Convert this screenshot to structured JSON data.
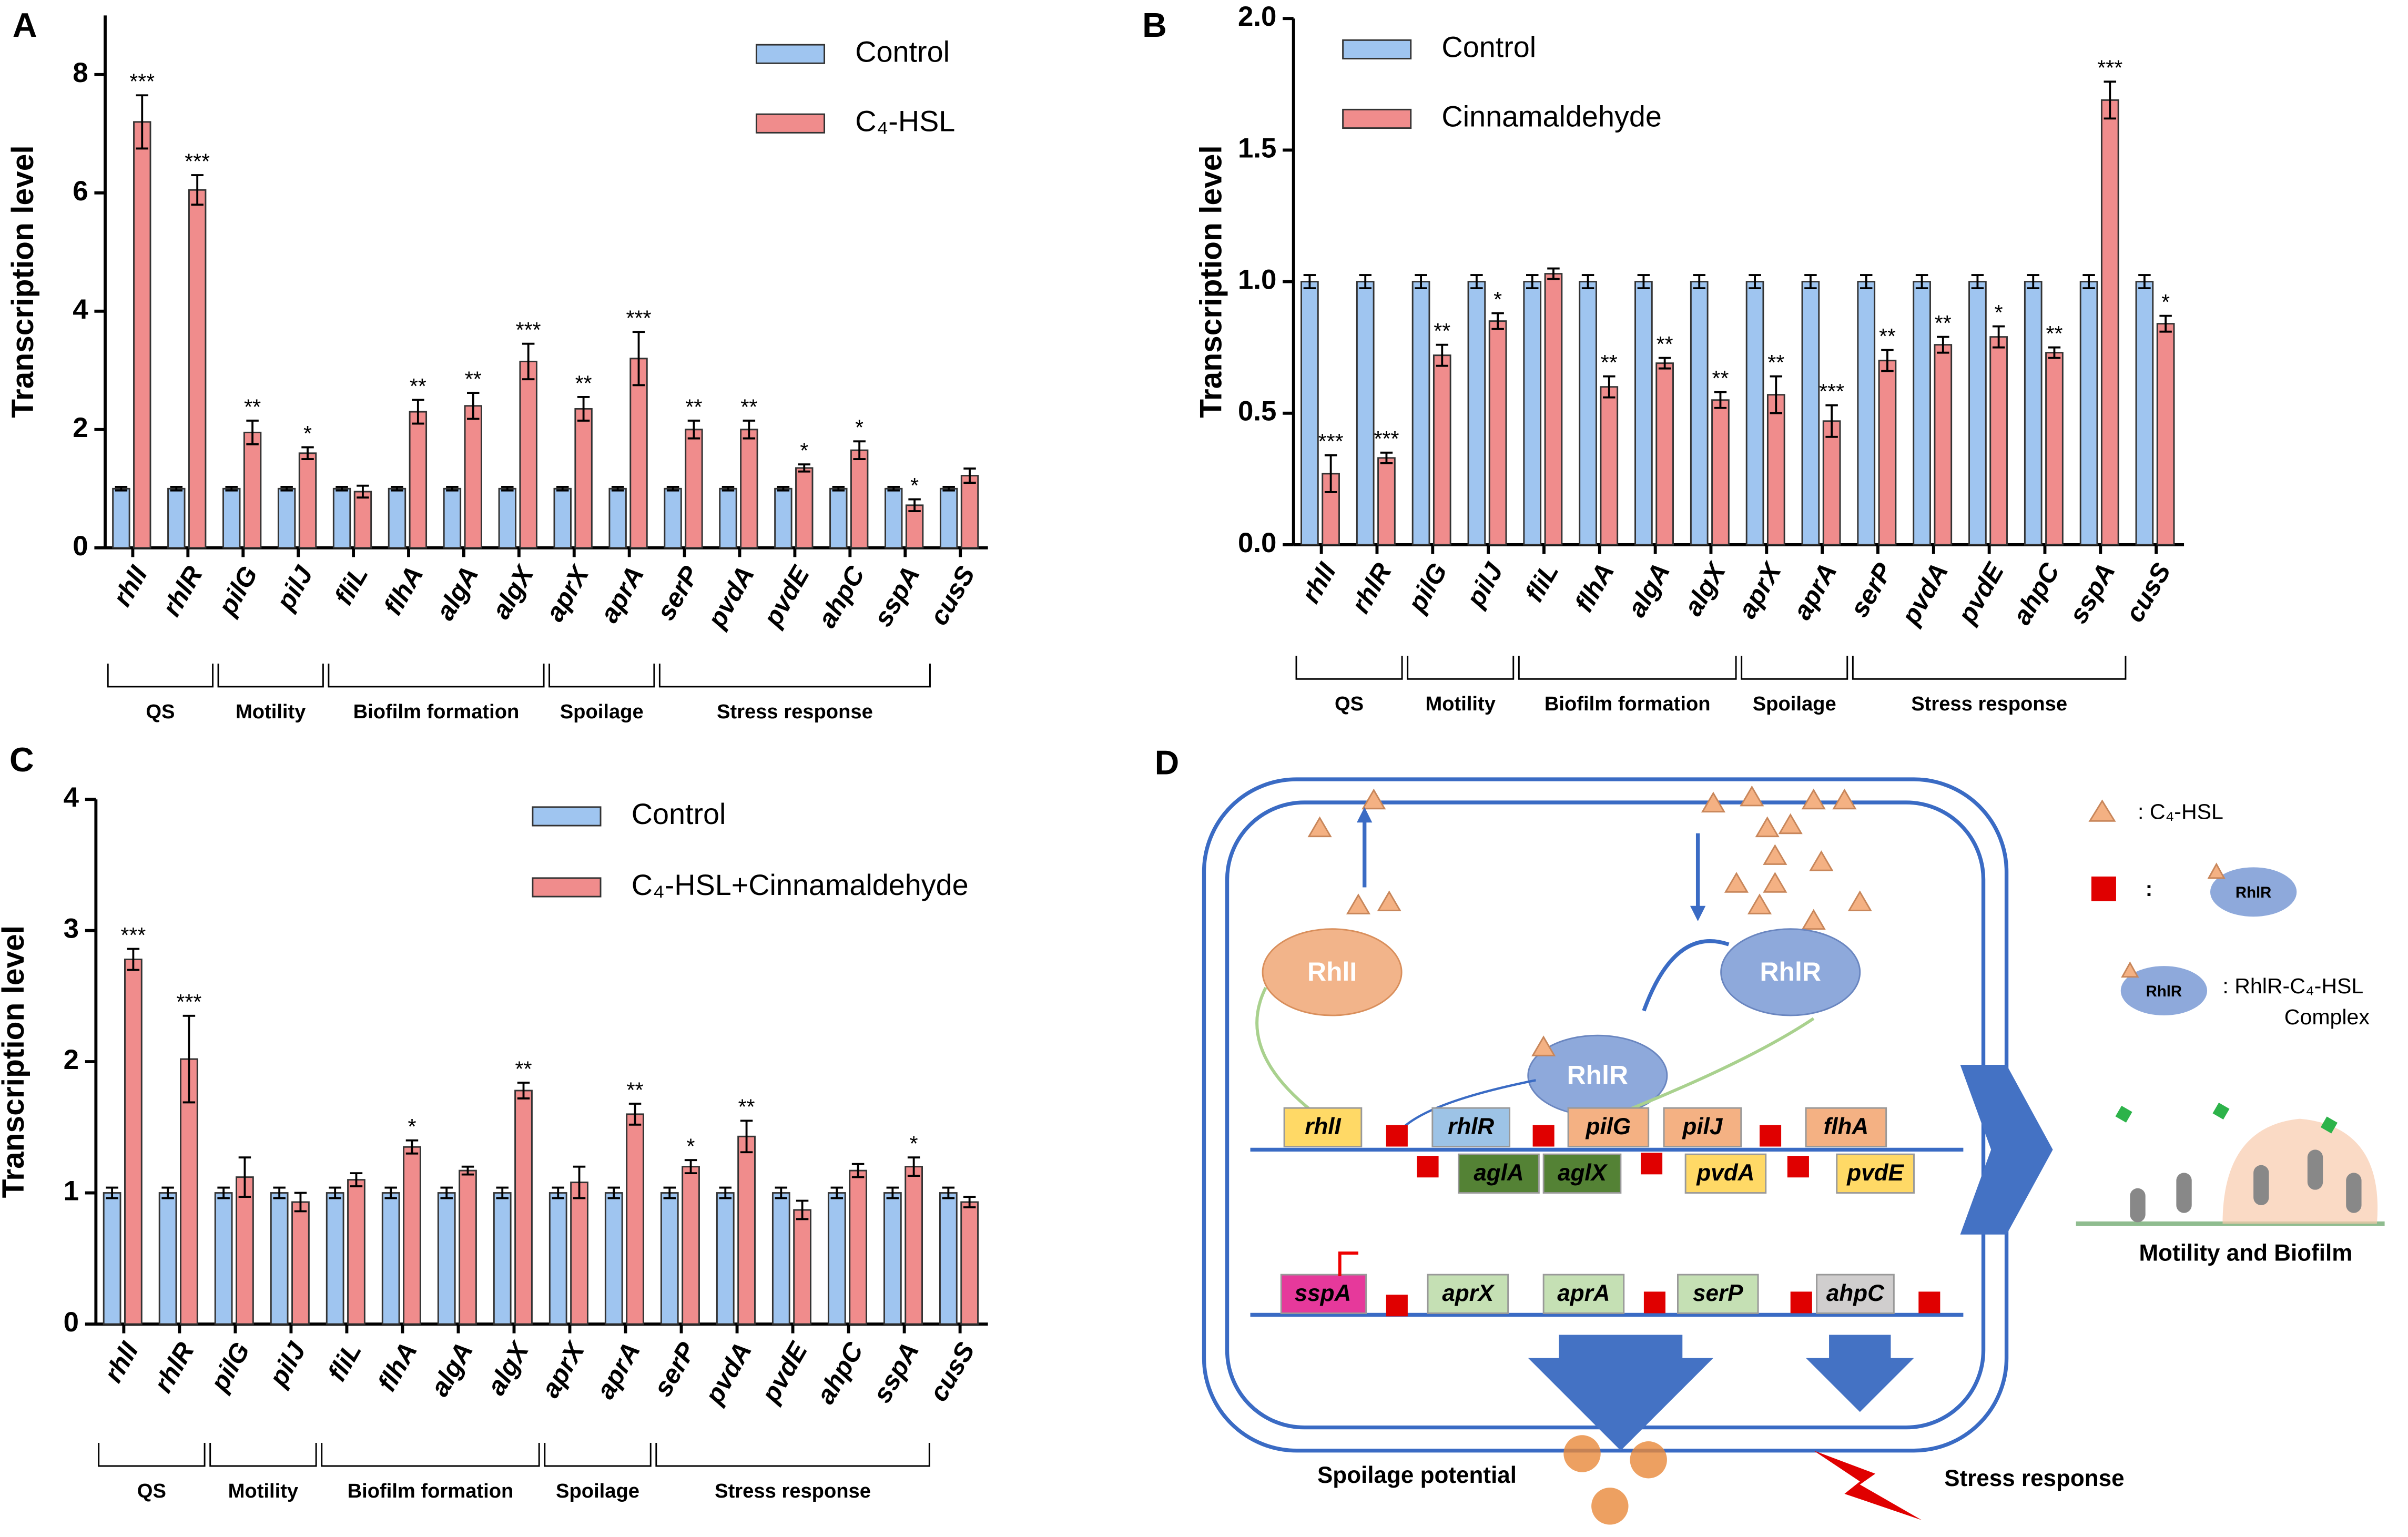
{
  "chart_data": [
    {
      "type": "bar",
      "panel_label": "A",
      "ylabel": "Transcription level",
      "categories": [
        "rhlI",
        "rhlR",
        "pilG",
        "pilJ",
        "fliL",
        "flhA",
        "algA",
        "algX",
        "aprX",
        "aprA",
        "serP",
        "pvdA",
        "pvdE",
        "ahpC",
        "sspA",
        "cusS"
      ],
      "series": [
        {
          "name": "Control",
          "color": "#9fc5f0",
          "values": [
            1,
            1,
            1,
            1,
            1,
            1,
            1,
            1,
            1,
            1,
            1,
            1,
            1,
            1,
            1,
            1
          ],
          "errors": [
            0.03,
            0.03,
            0.03,
            0.03,
            0.03,
            0.03,
            0.03,
            0.03,
            0.03,
            0.03,
            0.03,
            0.03,
            0.03,
            0.03,
            0.03,
            0.03
          ]
        },
        {
          "name": "C₄-HSL",
          "color": "#f08c8c",
          "values": [
            7.2,
            6.05,
            1.95,
            1.6,
            0.95,
            2.3,
            2.4,
            3.15,
            2.35,
            3.2,
            2.0,
            2.0,
            1.35,
            1.65,
            0.72,
            1.22
          ],
          "errors": [
            0.45,
            0.25,
            0.2,
            0.1,
            0.1,
            0.2,
            0.22,
            0.3,
            0.2,
            0.45,
            0.15,
            0.15,
            0.06,
            0.15,
            0.1,
            0.12
          ],
          "significance": [
            "***",
            "***",
            "**",
            "*",
            null,
            "**",
            "**",
            "***",
            "**",
            "***",
            "**",
            "**",
            "*",
            "*",
            "*",
            null
          ]
        }
      ],
      "ylim": [
        0,
        9
      ],
      "yticks": [
        0,
        2,
        4,
        6,
        8
      ],
      "groups": [
        {
          "label": "QS",
          "span": [
            0,
            1
          ]
        },
        {
          "label": "Motility",
          "span": [
            2,
            3
          ]
        },
        {
          "label": "Biofilm formation",
          "span": [
            4,
            7
          ]
        },
        {
          "label": "Spoilage",
          "span": [
            8,
            9
          ]
        },
        {
          "label": "Stress response",
          "span": [
            10,
            14
          ]
        }
      ]
    },
    {
      "type": "bar",
      "panel_label": "B",
      "ylabel": "Transcription level",
      "categories": [
        "rhlI",
        "rhlR",
        "pilG",
        "pilJ",
        "fliL",
        "flhA",
        "algA",
        "algX",
        "aprX",
        "aprA",
        "serP",
        "pvdA",
        "pvdE",
        "ahpC",
        "sspA",
        "cusS"
      ],
      "series": [
        {
          "name": "Control",
          "color": "#9fc5f0",
          "values": [
            1,
            1,
            1,
            1,
            1,
            1,
            1,
            1,
            1,
            1,
            1,
            1,
            1,
            1,
            1,
            1
          ],
          "errors": [
            0.025,
            0.025,
            0.025,
            0.025,
            0.025,
            0.025,
            0.025,
            0.025,
            0.025,
            0.025,
            0.025,
            0.025,
            0.025,
            0.025,
            0.025,
            0.025
          ]
        },
        {
          "name": "Cinnamaldehyde",
          "color": "#f08c8c",
          "values": [
            0.27,
            0.33,
            0.72,
            0.85,
            1.03,
            0.6,
            0.69,
            0.55,
            0.57,
            0.47,
            0.7,
            0.76,
            0.79,
            0.73,
            1.69,
            0.84
          ],
          "errors": [
            0.07,
            0.02,
            0.04,
            0.03,
            0.02,
            0.04,
            0.02,
            0.03,
            0.07,
            0.06,
            0.04,
            0.03,
            0.04,
            0.02,
            0.07,
            0.03
          ],
          "significance": [
            "***",
            "***",
            "**",
            "*",
            null,
            "**",
            "**",
            "**",
            "**",
            "***",
            "**",
            "**",
            "*",
            "**",
            "***",
            "*"
          ]
        }
      ],
      "ylim": [
        0,
        2
      ],
      "yticks": [
        {
          "value": 0,
          "label": "0.0"
        },
        0.5,
        {
          "value": 1,
          "label": "1.0"
        },
        1.5,
        {
          "value": 2,
          "label": "2.0"
        }
      ],
      "groups": [
        {
          "label": "QS",
          "span": [
            0,
            1
          ]
        },
        {
          "label": "Motility",
          "span": [
            2,
            3
          ]
        },
        {
          "label": "Biofilm formation",
          "span": [
            4,
            7
          ]
        },
        {
          "label": "Spoilage",
          "span": [
            8,
            9
          ]
        },
        {
          "label": "Stress response",
          "span": [
            10,
            14
          ]
        }
      ]
    },
    {
      "type": "bar",
      "panel_label": "C",
      "ylabel": "Transcription level",
      "categories": [
        "rhlI",
        "rhlR",
        "pilG",
        "pilJ",
        "fliL",
        "flhA",
        "algA",
        "algX",
        "aprX",
        "aprA",
        "serP",
        "pvdA",
        "pvdE",
        "ahpC",
        "sspA",
        "cusS"
      ],
      "series": [
        {
          "name": "Control",
          "color": "#9fc5f0",
          "values": [
            1,
            1,
            1,
            1,
            1,
            1,
            1,
            1,
            1,
            1,
            1,
            1,
            1,
            1,
            1,
            1
          ],
          "errors": [
            0.04,
            0.04,
            0.04,
            0.04,
            0.04,
            0.04,
            0.04,
            0.04,
            0.04,
            0.04,
            0.04,
            0.04,
            0.04,
            0.04,
            0.04,
            0.04
          ]
        },
        {
          "name": "C₄-HSL+Cinnamaldehyde",
          "color": "#f08c8c",
          "values": [
            2.78,
            2.02,
            1.12,
            0.93,
            1.1,
            1.35,
            1.17,
            1.78,
            1.08,
            1.6,
            1.2,
            1.43,
            0.87,
            1.17,
            1.2,
            0.93
          ],
          "errors": [
            0.08,
            0.33,
            0.15,
            0.07,
            0.05,
            0.05,
            0.03,
            0.06,
            0.12,
            0.08,
            0.05,
            0.12,
            0.07,
            0.05,
            0.07,
            0.04
          ],
          "significance": [
            "***",
            "***",
            null,
            null,
            null,
            "*",
            null,
            "**",
            null,
            "**",
            "*",
            "**",
            null,
            null,
            "*",
            null
          ]
        }
      ],
      "ylim": [
        0,
        4
      ],
      "yticks": [
        0,
        1,
        2,
        3,
        4
      ],
      "groups": [
        {
          "label": "QS",
          "span": [
            0,
            1
          ]
        },
        {
          "label": "Motility",
          "span": [
            2,
            3
          ]
        },
        {
          "label": "Biofilm formation",
          "span": [
            4,
            7
          ]
        },
        {
          "label": "Spoilage",
          "span": [
            8,
            9
          ]
        },
        {
          "label": "Stress response",
          "span": [
            10,
            14
          ]
        }
      ]
    }
  ],
  "diagram": {
    "panel_label": "D",
    "proteins": [
      "RhlI",
      "RhlR",
      "RhlR"
    ],
    "genes": [
      "rhlI",
      "rhlR",
      "pilG",
      "pilJ",
      "flhA",
      "aglA",
      "aglX",
      "pvdA",
      "pvdE",
      "sspA",
      "aprX",
      "aprA",
      "serP",
      "ahpC"
    ],
    "legend": {
      "signal": ": C₄-HSL",
      "inhibitor": ":",
      "receptor": "RhlR",
      "complex_icon": "RhlR",
      "complex": [
        ": RhlR-C₄-HSL",
        "Complex"
      ]
    },
    "outcomes": [
      "Motility and Biofilm",
      "Spoilage potential",
      "Stress response"
    ]
  }
}
